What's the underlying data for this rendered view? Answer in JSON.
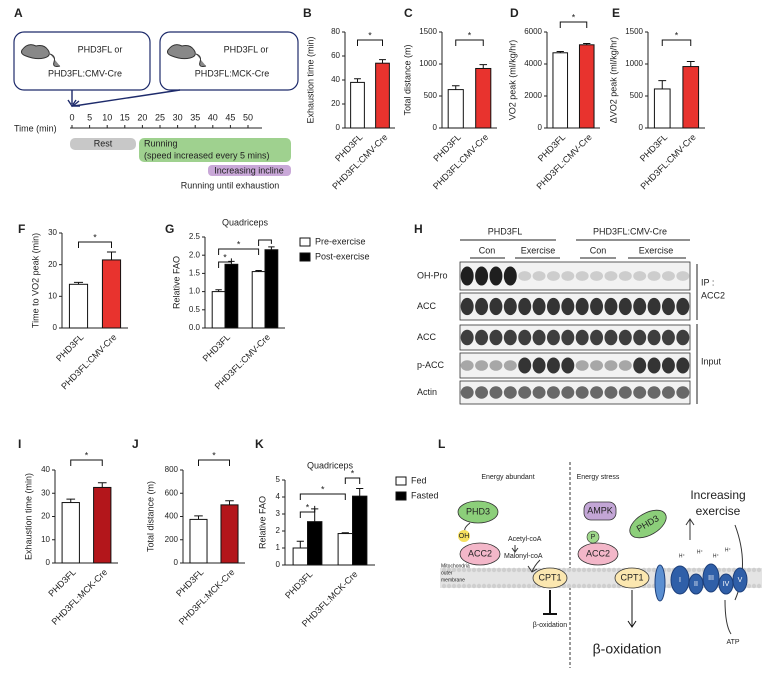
{
  "panel_a": {
    "label": "A",
    "box1": [
      "PHD3FL or",
      "PHD3FL:CMV-Cre"
    ],
    "box2": [
      "PHD3FL or",
      "PHD3FL:MCK-Cre"
    ],
    "axis_label": "Time (min)",
    "ticks": [
      0,
      5,
      10,
      15,
      20,
      25,
      30,
      35,
      40,
      45,
      50
    ],
    "rest": "Rest",
    "running": "Running",
    "running_note": "(speed increased every 5 mins)",
    "incline": "Increasing incline",
    "until": "Running until exhaustion"
  },
  "chart_data": [
    {
      "panel": "B",
      "type": "bar",
      "ylabel": "Exhaustion time (min)",
      "categories": [
        "PHD3FL",
        "PHD3FL:CMV-Cre"
      ],
      "values": [
        38,
        54
      ],
      "errors": [
        3,
        3
      ],
      "colors": [
        "#ffffff",
        "#e8332e"
      ],
      "ylim": [
        0,
        80
      ],
      "yticks": [
        0,
        20,
        40,
        60,
        80
      ],
      "significance": [
        "*"
      ]
    },
    {
      "panel": "C",
      "type": "bar",
      "ylabel": "Total distance (m)",
      "categories": [
        "PHD3FL",
        "PHD3FL:CMV-Cre"
      ],
      "values": [
        600,
        930
      ],
      "errors": [
        60,
        60
      ],
      "colors": [
        "#ffffff",
        "#e8332e"
      ],
      "ylim": [
        0,
        1500
      ],
      "yticks": [
        0,
        500,
        1000,
        1500
      ],
      "significance": [
        "*"
      ]
    },
    {
      "panel": "D",
      "type": "bar",
      "ylabel": "VO2 peak (ml/kg/hr)",
      "categories": [
        "PHD3FL",
        "PHD3FL:CMV-Cre"
      ],
      "values": [
        4700,
        5200
      ],
      "errors": [
        80,
        80
      ],
      "colors": [
        "#ffffff",
        "#e8332e"
      ],
      "ylim": [
        0,
        6000
      ],
      "yticks": [
        0,
        2000,
        4000,
        6000
      ],
      "significance": [
        "*"
      ]
    },
    {
      "panel": "E",
      "type": "bar",
      "ylabel": "ΔVO2 peak (ml/kg/hr)",
      "categories": [
        "PHD3FL",
        "PHD3FL:CMV-Cre"
      ],
      "values": [
        610,
        960
      ],
      "errors": [
        130,
        80
      ],
      "colors": [
        "#ffffff",
        "#e8332e"
      ],
      "ylim": [
        0,
        1500
      ],
      "yticks": [
        0,
        500,
        1000,
        1500
      ],
      "significance": [
        "*"
      ]
    },
    {
      "panel": "F",
      "type": "bar",
      "ylabel": "Time to VO2 peak (min)",
      "categories": [
        "PHD3FL",
        "PHD3FL:CMV-Cre"
      ],
      "values": [
        13.8,
        21.5
      ],
      "errors": [
        0.6,
        2.5
      ],
      "colors": [
        "#ffffff",
        "#e8332e"
      ],
      "ylim": [
        0,
        30
      ],
      "yticks": [
        0,
        10,
        20,
        30
      ],
      "significance": [
        "*"
      ]
    },
    {
      "panel": "G",
      "type": "bar",
      "title": "Quadriceps",
      "ylabel": "Relative FAO",
      "categories": [
        "PHD3FL",
        "PHD3FL:CMV-Cre"
      ],
      "series": [
        {
          "name": "Pre-exercise",
          "color": "#ffffff",
          "values": [
            1.0,
            1.55
          ],
          "errors": [
            0.05,
            0.03
          ]
        },
        {
          "name": "Post-exercise",
          "color": "#000000",
          "values": [
            1.75,
            2.15
          ],
          "errors": [
            0.08,
            0.08
          ]
        }
      ],
      "ylim": [
        0,
        2.5
      ],
      "yticks": [
        {
          "value": 0,
          "label": "0.0"
        },
        0.5,
        {
          "value": 1,
          "label": "1.0"
        },
        1.5,
        {
          "value": 2,
          "label": "2.0"
        },
        2.5
      ],
      "significance": [
        "*",
        "*"
      ]
    },
    {
      "panel": "I",
      "type": "bar",
      "ylabel": "Exhaustion time (min)",
      "categories": [
        "PHD3FL",
        "PHD3FL:MCK-Cre"
      ],
      "values": [
        26,
        32.5
      ],
      "errors": [
        1.5,
        2
      ],
      "colors": [
        "#ffffff",
        "#b3161b"
      ],
      "ylim": [
        0,
        40
      ],
      "yticks": [
        0,
        10,
        20,
        30,
        40
      ],
      "significance": [
        "*"
      ]
    },
    {
      "panel": "J",
      "type": "bar",
      "ylabel": "Total distance (m)",
      "categories": [
        "PHD3FL",
        "PHD3FL:MCK-Cre"
      ],
      "values": [
        375,
        500
      ],
      "errors": [
        30,
        35
      ],
      "colors": [
        "#ffffff",
        "#b3161b"
      ],
      "ylim": [
        0,
        800
      ],
      "yticks": [
        0,
        200,
        400,
        600,
        800
      ],
      "significance": [
        "*"
      ]
    },
    {
      "panel": "K",
      "type": "bar",
      "title": "Quadriceps",
      "ylabel": "Relative FAO",
      "categories": [
        "PHD3FL",
        "PHD3FL:MCK-Cre"
      ],
      "series": [
        {
          "name": "Fed",
          "color": "#ffffff",
          "values": [
            1.0,
            1.85
          ],
          "errors": [
            0.4,
            0.05
          ]
        },
        {
          "name": "Fasted",
          "color": "#000000",
          "values": [
            2.55,
            4.05
          ],
          "errors": [
            0.75,
            0.45
          ]
        }
      ],
      "ylim": [
        0,
        5
      ],
      "yticks": [
        0,
        1,
        2,
        3,
        4,
        5
      ],
      "significance": [
        "*",
        "*",
        "*"
      ]
    }
  ],
  "panel_h": {
    "label": "H",
    "groups": [
      "PHD3FL",
      "PHD3FL:CMV-Cre"
    ],
    "conditions": [
      "Con",
      "Exercise",
      "Con",
      "Exercise"
    ],
    "rows": [
      "OH-Pro",
      "ACC",
      "ACC",
      "p-ACC",
      "Actin"
    ],
    "ip": [
      "IP :",
      "ACC2"
    ],
    "input": "Input"
  },
  "panel_l": {
    "label": "L",
    "left_title": "Energy abundant",
    "right_title": "Energy stress",
    "phd3": "PHD3",
    "oh": "OH",
    "acc2": "ACC2",
    "acetyl": "Acetyl-coA",
    "malonyl": "Malonyl-coA",
    "membrane": [
      "Mitochondria",
      "outer",
      "membrane"
    ],
    "cpt1": "CPT1",
    "beta_small": "β-oxidation",
    "ampk": "AMPK",
    "p": "P",
    "phd3_right": "PHD3",
    "acc2_right": "ACC2",
    "cpt1_right": "CPT1",
    "beta_large": "β-oxidation",
    "exercise": [
      "Increasing",
      "exercise"
    ],
    "atp": "ATP",
    "complexes": [
      "I",
      "II",
      "III",
      "IV",
      "V"
    ],
    "proton": "H⁺"
  }
}
